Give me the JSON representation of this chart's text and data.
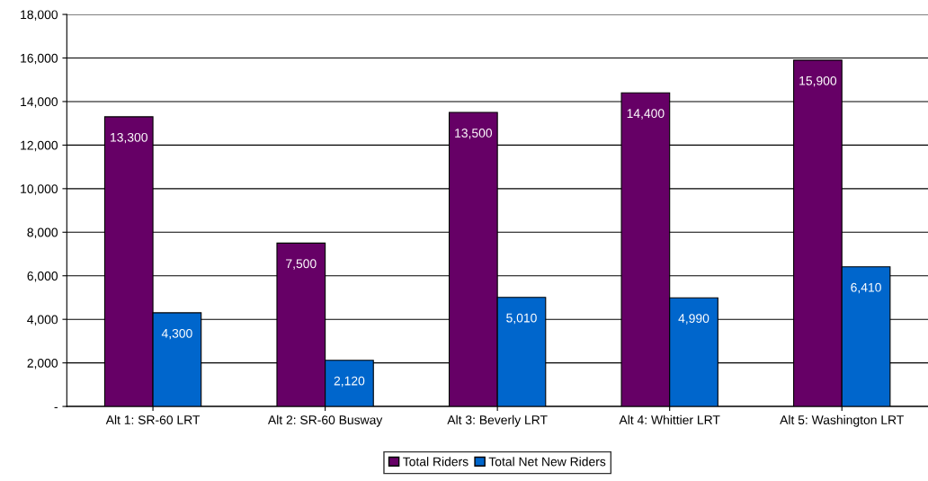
{
  "chart_data": {
    "type": "bar",
    "categories": [
      "Alt 1: SR-60 LRT",
      "Alt 2: SR-60 Busway",
      "Alt 3: Beverly LRT",
      "Alt 4: Whittier LRT",
      "Alt 5: Washington LRT"
    ],
    "series": [
      {
        "name": "Total Riders",
        "color": "#660066",
        "values": [
          13300,
          7500,
          13500,
          14400,
          15900
        ],
        "value_labels": [
          "13,300",
          "7,500",
          "13,500",
          "14,400",
          "15,900"
        ]
      },
      {
        "name": "Total Net New Riders",
        "color": "#0066cc",
        "values": [
          4300,
          2120,
          5010,
          4990,
          6410
        ],
        "value_labels": [
          "4,300",
          "2,120",
          "5,010",
          "4,990",
          "6,410"
        ]
      }
    ],
    "ylim": [
      0,
      18000
    ],
    "yticks": [
      {
        "value": 0,
        "label": "-"
      },
      {
        "value": 2000,
        "label": "2,000"
      },
      {
        "value": 4000,
        "label": "4,000"
      },
      {
        "value": 6000,
        "label": "6,000"
      },
      {
        "value": 8000,
        "label": "8,000"
      },
      {
        "value": 10000,
        "label": "10,000"
      },
      {
        "value": 12000,
        "label": "12,000"
      },
      {
        "value": 14000,
        "label": "14,000"
      },
      {
        "value": 16000,
        "label": "16,000"
      },
      {
        "value": 18000,
        "label": "18,000"
      }
    ],
    "grid": "y",
    "legend": "bottom"
  }
}
